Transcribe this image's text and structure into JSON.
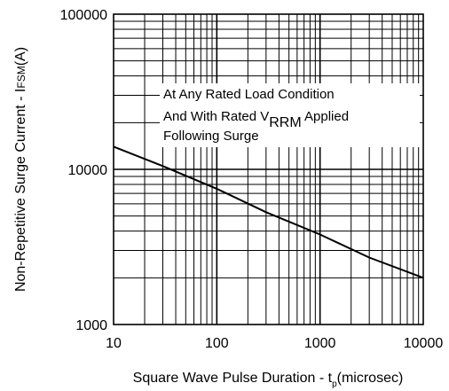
{
  "chart_data": {
    "type": "line",
    "title": "",
    "x_scale": "log",
    "y_scale": "log",
    "xlim": [
      10,
      10000
    ],
    "ylim": [
      1000,
      100000
    ],
    "x_ticks": [
      10,
      100,
      1000,
      10000
    ],
    "x_tick_labels": [
      "10",
      "100",
      "1000",
      "10000"
    ],
    "y_ticks": [
      1000,
      10000,
      100000
    ],
    "y_tick_labels": [
      "1000",
      "10000",
      "100000"
    ],
    "grid": true,
    "xlabel": {
      "main": "Square Wave Pulse Duration - t",
      "subscript": "p",
      "suffix": "(microsec)"
    },
    "ylabel": {
      "main": "Non-Repetitive Surge Current - I",
      "subscript": "FSM",
      "suffix": "(A)"
    },
    "annotation": {
      "line1": "At Any Rated Load Condition",
      "line2_prefix": "And With Rated V",
      "line2_subscript": "RRM",
      "line2_suffix": " Applied",
      "line3": "Following Surge"
    },
    "series": [
      {
        "x": [
          10,
          30,
          100,
          300,
          1000,
          3000,
          10000
        ],
        "y": [
          14000,
          10500,
          7500,
          5300,
          3800,
          2700,
          2000
        ]
      }
    ]
  }
}
